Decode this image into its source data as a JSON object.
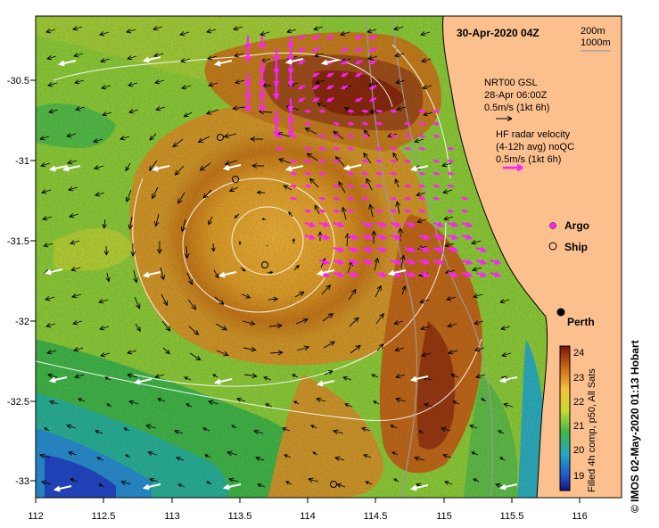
{
  "title": "30-Apr-2020 04Z",
  "scale_bar": {
    "label_a": "200m",
    "label_b": "1000m"
  },
  "legend": {
    "gsl_line1": "NRT00 GSL",
    "gsl_line2": "28-Apr 06:00Z",
    "gsl_line3": "0.5m/s (1kt 6h)",
    "radar_line1": "HF radar velocity",
    "radar_line2": "(4-12h avg) noQC",
    "radar_line3": "0.5m/s (1kt 6h)",
    "argo_label": "Argo",
    "ship_label": "Ship"
  },
  "city": {
    "name": "Perth"
  },
  "colorbar": {
    "ticks": [
      "24",
      "23",
      "22",
      "21",
      "20",
      "19"
    ],
    "caption": "Filled 4h comp, p50, All Sats"
  },
  "credit": "© IMOS 02-May-2020 01:13 Hobart",
  "axes": {
    "x_ticks": [
      "112",
      "112.5",
      "113",
      "113.5",
      "114",
      "114.5",
      "115",
      "115.5",
      "116"
    ],
    "y_ticks": [
      "-30.5",
      "-31",
      "-31.5",
      "-32",
      "-32.5",
      "-33"
    ]
  },
  "colors": {
    "land": "#fcc08e",
    "radar_arrows": "#ff1fff",
    "gsl_arrows": "#000000",
    "fast_arrows": "#ffffff",
    "sst_cold": "#1a1a8a",
    "sst_warm": "#8b1a0a"
  }
}
